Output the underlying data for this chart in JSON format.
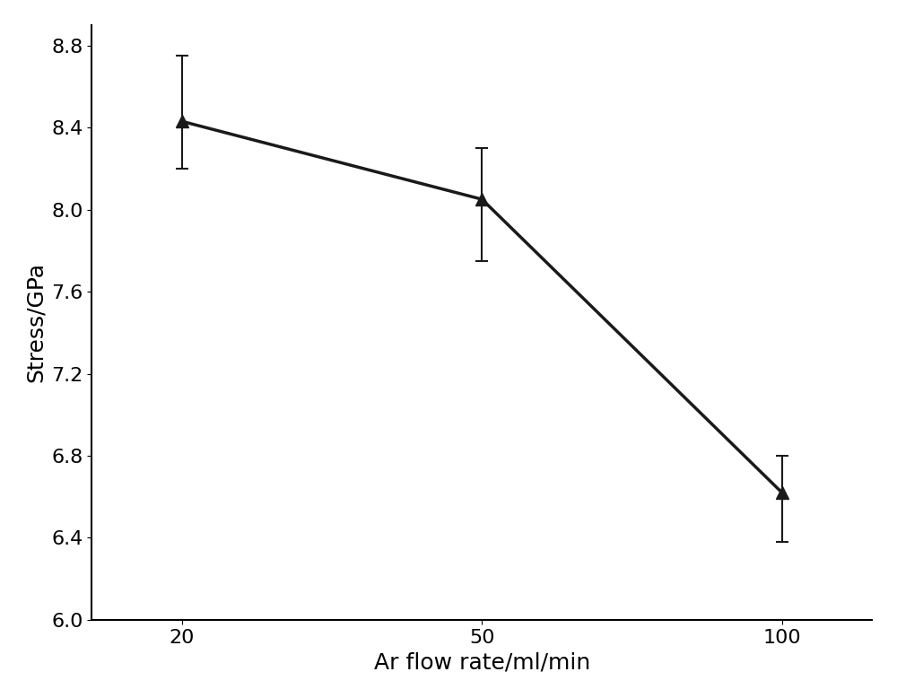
{
  "x_positions": [
    0,
    1,
    2
  ],
  "x_labels": [
    "20",
    "50",
    "100"
  ],
  "y": [
    8.43,
    8.05,
    6.62
  ],
  "yerr_upper": [
    0.32,
    0.25,
    0.18
  ],
  "yerr_lower": [
    0.23,
    0.3,
    0.24
  ],
  "xlabel": "Ar flow rate/ml/min",
  "ylabel": "Stress/GPa",
  "ylim": [
    6.0,
    8.9
  ],
  "yticks": [
    6.0,
    6.4,
    6.8,
    7.2,
    7.6,
    8.0,
    8.4,
    8.8
  ],
  "line_color": "#1a1a1a",
  "marker": "^",
  "markersize": 10,
  "linewidth": 2.5,
  "capsize": 5,
  "background_color": "#ffffff",
  "xlabel_fontsize": 18,
  "ylabel_fontsize": 18,
  "tick_fontsize": 16
}
